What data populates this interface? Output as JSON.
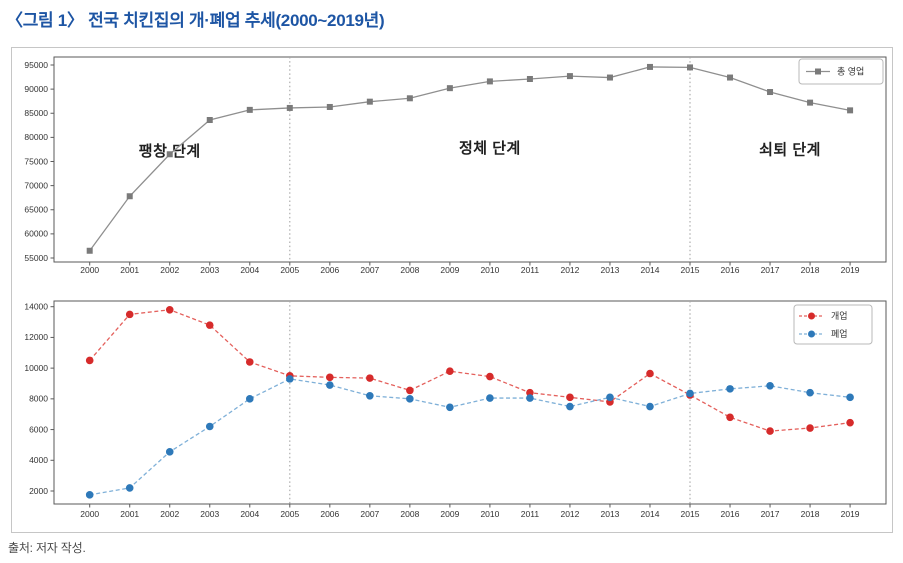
{
  "page": {
    "title": "〈그림 1〉 전국 치킨집의 개·폐업 추세(2000~2019년)",
    "source": "출처: 저자 작성."
  },
  "colors": {
    "title_blue": "#1d55a4",
    "axes_stroke": "#5a5a5a",
    "figure_frame": "#c6c6c6",
    "divider_gray": "#a6a6a6",
    "operating_gray": "#7a7a7a",
    "open_red": "#d62b2b",
    "close_blue": "#2e79b9"
  },
  "chart_data": [
    {
      "type": "line",
      "panel": "top",
      "title": "",
      "xlabel": "",
      "ylabel": "",
      "grid": false,
      "legend_position": "upper right",
      "x": [
        2000,
        2001,
        2002,
        2003,
        2004,
        2005,
        2006,
        2007,
        2008,
        2009,
        2010,
        2011,
        2012,
        2013,
        2014,
        2015,
        2016,
        2017,
        2018,
        2019
      ],
      "yticks": [
        55000,
        60000,
        65000,
        70000,
        75000,
        80000,
        85000,
        90000,
        95000
      ],
      "ylim": [
        54200,
        96700
      ],
      "vlines": [
        2005,
        2015
      ],
      "annotations": [
        {
          "text": "팽창 단계",
          "year": 2002,
          "value": 76100
        },
        {
          "text": "정체 단계",
          "year": 2010,
          "value": 76800
        },
        {
          "text": "쇠퇴 단계",
          "year": 2017.5,
          "value": 76500
        }
      ],
      "series": [
        {
          "id": "operating",
          "name": "총 영업",
          "marker": "square",
          "linestyle": "solid",
          "color": "#7a7a7a",
          "line_color": "#8f8f8f",
          "values": [
            56500,
            67800,
            76500,
            83600,
            85700,
            86100,
            86300,
            87400,
            88100,
            90200,
            91600,
            92100,
            92700,
            92400,
            94600,
            94500,
            92400,
            89400,
            87200,
            85600
          ]
        }
      ]
    },
    {
      "type": "line",
      "panel": "bottom",
      "title": "",
      "xlabel": "",
      "ylabel": "",
      "grid": false,
      "legend_position": "upper right",
      "x": [
        2000,
        2001,
        2002,
        2003,
        2004,
        2005,
        2006,
        2007,
        2008,
        2009,
        2010,
        2011,
        2012,
        2013,
        2014,
        2015,
        2016,
        2017,
        2018,
        2019
      ],
      "yticks": [
        2000,
        4000,
        6000,
        8000,
        10000,
        12000,
        14000
      ],
      "ylim": [
        1150,
        14380
      ],
      "vlines": [
        2005,
        2015
      ],
      "annotations": [],
      "series": [
        {
          "id": "open",
          "name": "개업",
          "marker": "circle",
          "linestyle": "dashed",
          "color": "#d62b2b",
          "line_color": "#e4605c",
          "values": [
            10500,
            13500,
            13800,
            12800,
            10400,
            9500,
            9400,
            9350,
            8550,
            9800,
            9450,
            8400,
            8100,
            7800,
            9650,
            8250,
            6800,
            5900,
            6100,
            6450
          ]
        },
        {
          "id": "close",
          "name": "폐업",
          "marker": "circle",
          "linestyle": "dashed",
          "color": "#2e79b9",
          "line_color": "#7fb0d8",
          "values": [
            1750,
            2200,
            4550,
            6200,
            8000,
            9300,
            8900,
            8200,
            8000,
            7450,
            8050,
            8050,
            7500,
            8100,
            7500,
            8350,
            8650,
            8850,
            8400,
            8100
          ]
        }
      ]
    }
  ]
}
